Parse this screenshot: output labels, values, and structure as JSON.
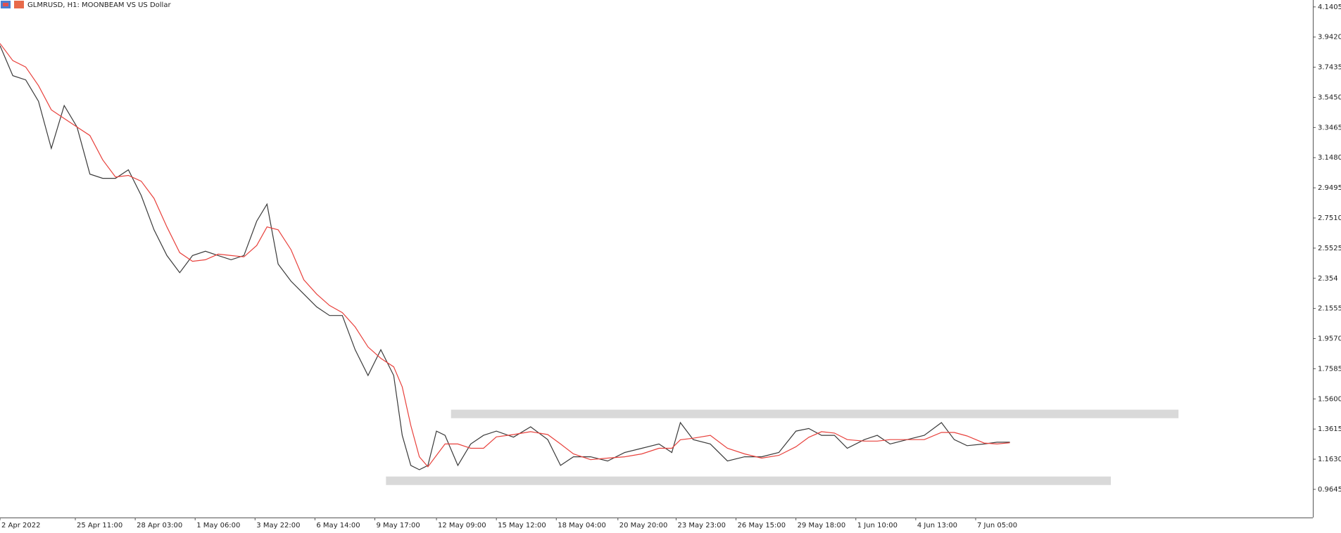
{
  "chart_data": {
    "type": "line",
    "title": "GLMRUSD, H1:  MOONBEAM VS US Dollar",
    "x": [
      0,
      15,
      30,
      45,
      60,
      75,
      90,
      105,
      120,
      135,
      150,
      165,
      180,
      195,
      210,
      225,
      240,
      255,
      270,
      285,
      300,
      312,
      325,
      340,
      355,
      370,
      385,
      400,
      415,
      430,
      445,
      460,
      470,
      480,
      490,
      500,
      510,
      520,
      535,
      550,
      565,
      580,
      600,
      620,
      640,
      655,
      670,
      690,
      710,
      730,
      750,
      770,
      785,
      795,
      810,
      830,
      850,
      870,
      890,
      910,
      930,
      945,
      960,
      975,
      990,
      1010,
      1025,
      1040,
      1060,
      1080,
      1100,
      1115,
      1130,
      1150,
      1165,
      1180
    ],
    "series": [
      {
        "color": "#3a3a3a",
        "values": [
          3.886,
          3.688,
          3.66,
          3.519,
          3.209,
          3.491,
          3.35,
          3.04,
          3.012,
          3.012,
          3.068,
          2.899,
          2.673,
          2.504,
          2.391,
          2.504,
          2.532,
          2.504,
          2.476,
          2.504,
          2.73,
          2.842,
          2.448,
          2.335,
          2.25,
          2.166,
          2.109,
          2.109,
          1.884,
          1.714,
          1.884,
          1.714,
          1.32,
          1.122,
          1.094,
          1.122,
          1.348,
          1.32,
          1.122,
          1.263,
          1.32,
          1.348,
          1.308,
          1.376,
          1.292,
          1.122,
          1.179,
          1.179,
          1.151,
          1.207,
          1.235,
          1.263,
          1.207,
          1.404,
          1.292,
          1.263,
          1.151,
          1.179,
          1.179,
          1.207,
          1.348,
          1.365,
          1.32,
          1.32,
          1.235,
          1.292,
          1.32,
          1.263,
          1.292,
          1.32,
          1.404,
          1.292,
          1.252,
          1.263,
          1.275,
          1.275
        ]
      },
      {
        "color": "#e8413c",
        "values": [
          3.9,
          3.787,
          3.745,
          3.622,
          3.463,
          3.406,
          3.35,
          3.294,
          3.134,
          3.021,
          3.031,
          2.993,
          2.88,
          2.692,
          2.523,
          2.466,
          2.476,
          2.513,
          2.504,
          2.495,
          2.57,
          2.692,
          2.673,
          2.542,
          2.344,
          2.25,
          2.175,
          2.128,
          2.034,
          1.902,
          1.827,
          1.771,
          1.639,
          1.385,
          1.179,
          1.113,
          1.188,
          1.263,
          1.263,
          1.235,
          1.235,
          1.31,
          1.325,
          1.344,
          1.325,
          1.263,
          1.198,
          1.16,
          1.17,
          1.179,
          1.198,
          1.235,
          1.235,
          1.291,
          1.301,
          1.32,
          1.235,
          1.198,
          1.17,
          1.188,
          1.245,
          1.307,
          1.344,
          1.335,
          1.292,
          1.282,
          1.282,
          1.292,
          1.292,
          1.292,
          1.339,
          1.339,
          1.316,
          1.269,
          1.263,
          1.271
        ]
      }
    ],
    "zones": [
      {
        "color": "#d9d9d9",
        "x": [
          527,
          1377
        ],
        "y": [
          1.433,
          1.489
        ]
      },
      {
        "color": "#d9d9d9",
        "x": [
          451,
          1298
        ],
        "y": [
          0.993,
          1.049
        ]
      }
    ],
    "xlim": [
      0,
      1534
    ],
    "ylim": [
      0.779,
      4.186
    ],
    "xticks": [
      {
        "value": 0,
        "label": "2 Apr 2022"
      },
      {
        "value": 88,
        "label": "25 Apr 11:00"
      },
      {
        "value": 158,
        "label": "28 Apr 03:00"
      },
      {
        "value": 228,
        "label": "1 May 06:00"
      },
      {
        "value": 298,
        "label": "3 May 22:00"
      },
      {
        "value": 368,
        "label": "6 May 14:00"
      },
      {
        "value": 438,
        "label": "9 May 17:00"
      },
      {
        "value": 510,
        "label": "12 May 09:00"
      },
      {
        "value": 580,
        "label": "15 May 12:00"
      },
      {
        "value": 650,
        "label": "18 May 04:00"
      },
      {
        "value": 722,
        "label": "20 May 20:00"
      },
      {
        "value": 790,
        "label": "23 May 23:00"
      },
      {
        "value": 860,
        "label": "26 May 15:00"
      },
      {
        "value": 930,
        "label": "29 May 18:00"
      },
      {
        "value": 1000,
        "label": "1 Jun 10:00"
      },
      {
        "value": 1070,
        "label": "4 Jun 13:00"
      },
      {
        "value": 1140,
        "label": "7 Jun 05:00"
      }
    ],
    "yticks": [
      4.1405,
      {
        "value": 3.942,
        "label": "3.9420"
      },
      3.7435,
      {
        "value": 3.545,
        "label": "3.5450"
      },
      3.3465,
      {
        "value": 3.148,
        "label": "3.1480"
      },
      2.9495,
      {
        "value": 2.751,
        "label": "2.7510"
      },
      2.5525,
      2.354,
      2.1555,
      {
        "value": 1.957,
        "label": "1.9570"
      },
      1.7585,
      {
        "value": 1.56,
        "label": "1.5600"
      },
      1.3615,
      {
        "value": 1.163,
        "label": "1.1630"
      },
      0.9645
    ]
  }
}
